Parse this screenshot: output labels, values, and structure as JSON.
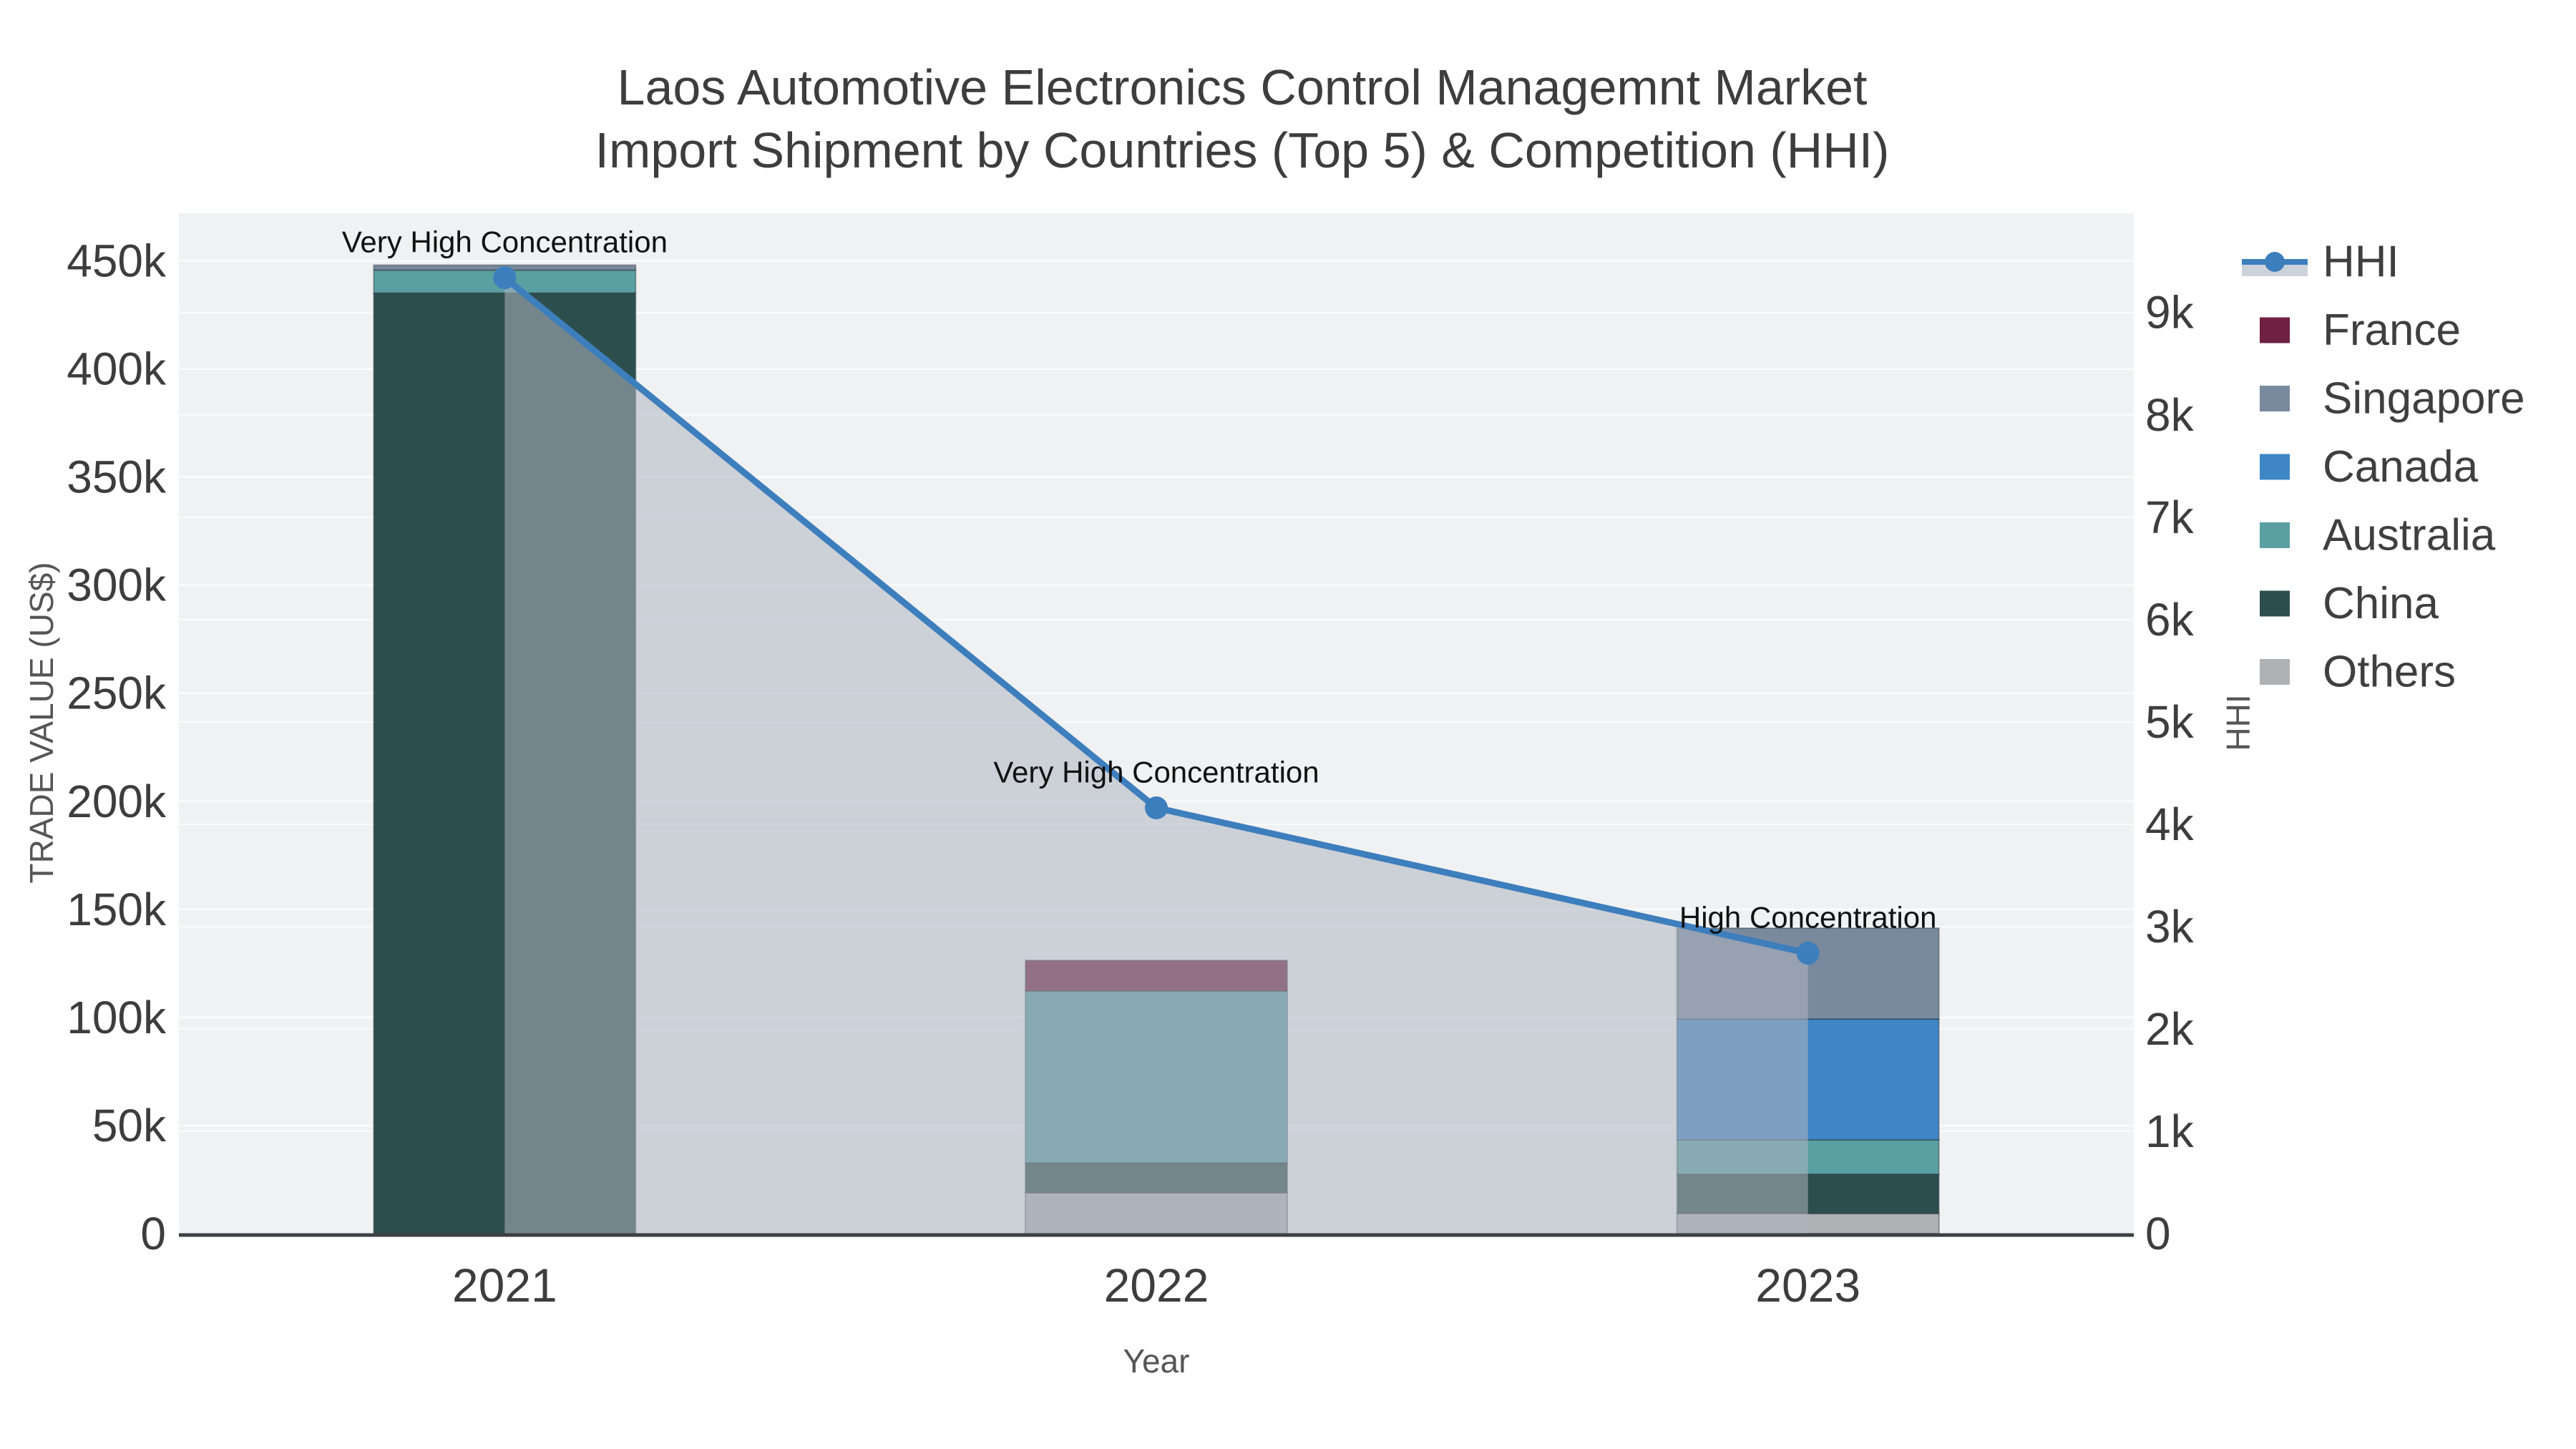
{
  "title": {
    "line1": "Laos Automotive Electronics Control Managemnt Market",
    "line2": "Import Shipment by Countries (Top 5) & Competition (HHI)"
  },
  "chart_data": {
    "type": "bar",
    "stacked": true,
    "categories": [
      "2021",
      "2022",
      "2023"
    ],
    "series": [
      {
        "name": "Others",
        "color": "#b0b1b3",
        "values": [
          0,
          18900,
          9300
        ]
      },
      {
        "name": "China",
        "color": "#2c4f4d",
        "values": [
          435100,
          13900,
          18200
        ]
      },
      {
        "name": "Australia",
        "color": "#5aa0a2",
        "values": [
          10600,
          79400,
          15900
        ]
      },
      {
        "name": "Canada",
        "color": "#3e86c4",
        "values": [
          0,
          0,
          55900
        ]
      },
      {
        "name": "Singapore",
        "color": "#7a8a9e",
        "values": [
          2300,
          0,
          42000
        ]
      },
      {
        "name": "France",
        "color": "#6f2142",
        "values": [
          0,
          14200,
          0
        ]
      }
    ],
    "line_series": {
      "name": "HHI",
      "color": "#3d7ebd",
      "fill_color": "rgba(174,181,193,0.55)",
      "values": [
        9340,
        4160,
        2740
      ]
    },
    "annotations": [
      {
        "category": "2021",
        "text": "Very High Concentration"
      },
      {
        "category": "2022",
        "text": "Very High Concentration"
      },
      {
        "category": "2023",
        "text": "High Concentration"
      }
    ],
    "xlabel": "Year",
    "ylabel_left": "TRADE VALUE (US$)",
    "ylabel_right": "HHI",
    "ylim_left": [
      0,
      472000
    ],
    "ylim_right": [
      0,
      9970
    ],
    "yticks_left": [
      {
        "v": 0,
        "label": "0"
      },
      {
        "v": 50000,
        "label": "50k"
      },
      {
        "v": 100000,
        "label": "100k"
      },
      {
        "v": 150000,
        "label": "150k"
      },
      {
        "v": 200000,
        "label": "200k"
      },
      {
        "v": 250000,
        "label": "250k"
      },
      {
        "v": 300000,
        "label": "300k"
      },
      {
        "v": 350000,
        "label": "350k"
      },
      {
        "v": 400000,
        "label": "400k"
      },
      {
        "v": 450000,
        "label": "450k"
      }
    ],
    "yticks_right": [
      {
        "v": 0,
        "label": "0"
      },
      {
        "v": 1000,
        "label": "1k"
      },
      {
        "v": 2000,
        "label": "2k"
      },
      {
        "v": 3000,
        "label": "3k"
      },
      {
        "v": 4000,
        "label": "4k"
      },
      {
        "v": 5000,
        "label": "5k"
      },
      {
        "v": 6000,
        "label": "6k"
      },
      {
        "v": 7000,
        "label": "7k"
      },
      {
        "v": 8000,
        "label": "8k"
      },
      {
        "v": 9000,
        "label": "9k"
      }
    ],
    "grid": true,
    "legend_position": "right",
    "plot_bg": "#f0f1f2",
    "gridline_color": "#fafbfc",
    "axisline_color": "#3c4043"
  },
  "legend": {
    "items": [
      {
        "label": "HHI",
        "type": "line"
      },
      {
        "label": "France",
        "type": "swatch",
        "color": "#6f2142"
      },
      {
        "label": "Singapore",
        "type": "swatch",
        "color": "#7a8a9e"
      },
      {
        "label": "Canada",
        "type": "swatch",
        "color": "#3e86c4"
      },
      {
        "label": "Australia",
        "type": "swatch",
        "color": "#5aa0a2"
      },
      {
        "label": "China",
        "type": "swatch",
        "color": "#2c4f4d"
      },
      {
        "label": "Others",
        "type": "swatch",
        "color": "#b0b1b3"
      }
    ]
  }
}
